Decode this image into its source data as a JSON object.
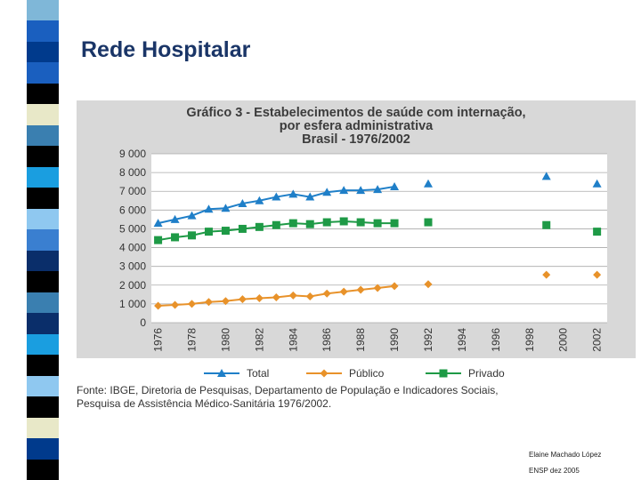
{
  "slide_title": "Rede Hospitalar",
  "colors": {
    "stripe": [
      "#7fb7d8",
      "#1a5fbf",
      "#003a8c",
      "#1a5fbf",
      "#000000",
      "#e8e8c8",
      "#3a7fb0",
      "#000000",
      "#1a9ee0",
      "#000000",
      "#8fc8f0",
      "#3a7fd0",
      "#0a2e6a",
      "#000000",
      "#3a7fb0",
      "#0a2e6a",
      "#1a9ee0",
      "#000000",
      "#8fc8f0",
      "#000000",
      "#e8e8c8",
      "#003a8c",
      "#000000"
    ],
    "total": "#1f7fc8",
    "publico": "#e8922a",
    "privado": "#1e9a46",
    "grid": "#aaaaaa"
  },
  "chart_data": {
    "type": "line",
    "title_lines": [
      "Gráfico 3 - Estabelecimentos de saúde com internação,",
      "por esfera administrativa",
      "Brasil - 1976/2002"
    ],
    "x": [
      1976,
      1977,
      1978,
      1979,
      1980,
      1981,
      1982,
      1983,
      1984,
      1985,
      1986,
      1987,
      1988,
      1989,
      1990,
      1992,
      1999,
      2002
    ],
    "x_tick_labels": [
      "1976",
      "1978",
      "1980",
      "1982",
      "1984",
      "1986",
      "1988",
      "1990",
      "1992",
      "1994",
      "1996",
      "1998",
      "2000",
      "2002"
    ],
    "x_tick_values": [
      1976,
      1978,
      1980,
      1982,
      1984,
      1986,
      1988,
      1990,
      1992,
      1994,
      1996,
      1998,
      2000,
      2002
    ],
    "xlim": [
      1975.6,
      2002.6
    ],
    "y_tick_labels": [
      "0",
      "1 000",
      "2 000",
      "3 000",
      "4 000",
      "5 000",
      "6 000",
      "7 000",
      "8 000",
      "9 000"
    ],
    "y_tick_values": [
      0,
      1000,
      2000,
      3000,
      4000,
      5000,
      6000,
      7000,
      8000,
      9000
    ],
    "ylim": [
      0,
      9000
    ],
    "grid": true,
    "legend_position": "bottom",
    "connected_through": 1990,
    "series": [
      {
        "name": "Total",
        "key": "total",
        "marker": "triangle",
        "values": [
          5300,
          5500,
          5700,
          6050,
          6100,
          6350,
          6500,
          6700,
          6850,
          6700,
          6950,
          7050,
          7050,
          7100,
          7250,
          7400,
          7800,
          7400
        ]
      },
      {
        "name": "Público",
        "key": "publico",
        "marker": "diamond",
        "values": [
          900,
          950,
          1000,
          1100,
          1150,
          1250,
          1300,
          1350,
          1450,
          1400,
          1550,
          1650,
          1750,
          1850,
          1950,
          2050,
          2550,
          2550
        ]
      },
      {
        "name": "Privado",
        "key": "privado",
        "marker": "square",
        "values": [
          4400,
          4550,
          4650,
          4850,
          4900,
          5000,
          5100,
          5200,
          5300,
          5250,
          5350,
          5400,
          5350,
          5300,
          5300,
          5350,
          5200,
          4850
        ]
      }
    ]
  },
  "source_lines": [
    "Fonte: IBGE, Diretoria de Pesquisas, Departamento de População e Indicadores Sociais,",
    "Pesquisa de Assistência Médico-Sanitária 1976/2002."
  ],
  "footer": {
    "author": "Elaine Machado López",
    "event": "ENSP dez 2005"
  }
}
